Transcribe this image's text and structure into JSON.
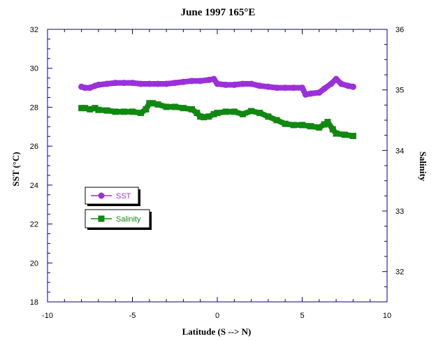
{
  "chart_data": {
    "type": "line",
    "title": "June 1997 165°E",
    "xlabel": "Latitude  (S --> N)",
    "ylabel": "SST (°C)",
    "y2label": "Salinity",
    "xlim": [
      -10,
      10
    ],
    "ylim": [
      18,
      32
    ],
    "y2lim": [
      31.5,
      36
    ],
    "xticks": [
      "-10",
      "-5",
      "0",
      "5",
      "10"
    ],
    "yticks": [
      "18",
      "20",
      "22",
      "24",
      "26",
      "28",
      "30",
      "32"
    ],
    "y2ticks": [
      "32",
      "33",
      "34",
      "35",
      "36"
    ],
    "grid": false,
    "legend_position": "middle-left",
    "series": [
      {
        "name": "SST",
        "axis": "left",
        "color": "#9b30d9",
        "marker": "circle",
        "x": [
          -8.0,
          -7.8,
          -7.5,
          -7.2,
          -7.0,
          -6.5,
          -6.0,
          -5.5,
          -5.0,
          -4.5,
          -4.0,
          -3.5,
          -3.0,
          -2.5,
          -2.0,
          -1.5,
          -1.0,
          -0.5,
          -0.2,
          0.0,
          0.5,
          1.0,
          1.5,
          2.0,
          2.5,
          3.0,
          3.5,
          4.0,
          4.5,
          5.0,
          5.2,
          5.5,
          6.0,
          6.3,
          6.7,
          7.0,
          7.3,
          7.7,
          8.0
        ],
        "values": [
          29.05,
          29.0,
          29.0,
          29.1,
          29.15,
          29.2,
          29.25,
          29.25,
          29.25,
          29.2,
          29.2,
          29.2,
          29.2,
          29.25,
          29.3,
          29.35,
          29.35,
          29.4,
          29.45,
          29.2,
          29.15,
          29.15,
          29.2,
          29.2,
          29.1,
          29.05,
          29.0,
          29.0,
          29.0,
          29.0,
          28.65,
          28.7,
          28.75,
          28.95,
          29.2,
          29.45,
          29.2,
          29.1,
          29.05
        ]
      },
      {
        "name": "Salinity",
        "axis": "right",
        "color": "#118811",
        "marker": "square",
        "x": [
          -8.0,
          -7.8,
          -7.5,
          -7.2,
          -7.0,
          -6.5,
          -6.0,
          -5.5,
          -5.0,
          -4.5,
          -4.2,
          -4.0,
          -3.8,
          -3.5,
          -3.0,
          -2.5,
          -2.0,
          -1.5,
          -1.2,
          -1.0,
          -0.8,
          -0.5,
          -0.2,
          0.0,
          0.5,
          1.0,
          1.5,
          2.0,
          2.5,
          3.0,
          3.5,
          4.0,
          4.5,
          5.0,
          5.5,
          6.0,
          6.3,
          6.5,
          6.8,
          7.0,
          7.5,
          8.0
        ],
        "values": [
          34.7,
          34.7,
          34.68,
          34.7,
          34.67,
          34.66,
          34.64,
          34.64,
          34.64,
          34.62,
          34.68,
          34.78,
          34.78,
          34.76,
          34.72,
          34.72,
          34.7,
          34.68,
          34.62,
          34.56,
          34.55,
          34.56,
          34.6,
          34.62,
          34.64,
          34.64,
          34.6,
          34.65,
          34.62,
          34.56,
          34.5,
          34.44,
          34.42,
          34.42,
          34.4,
          34.38,
          34.43,
          34.47,
          34.35,
          34.28,
          34.26,
          34.24
        ]
      }
    ]
  }
}
